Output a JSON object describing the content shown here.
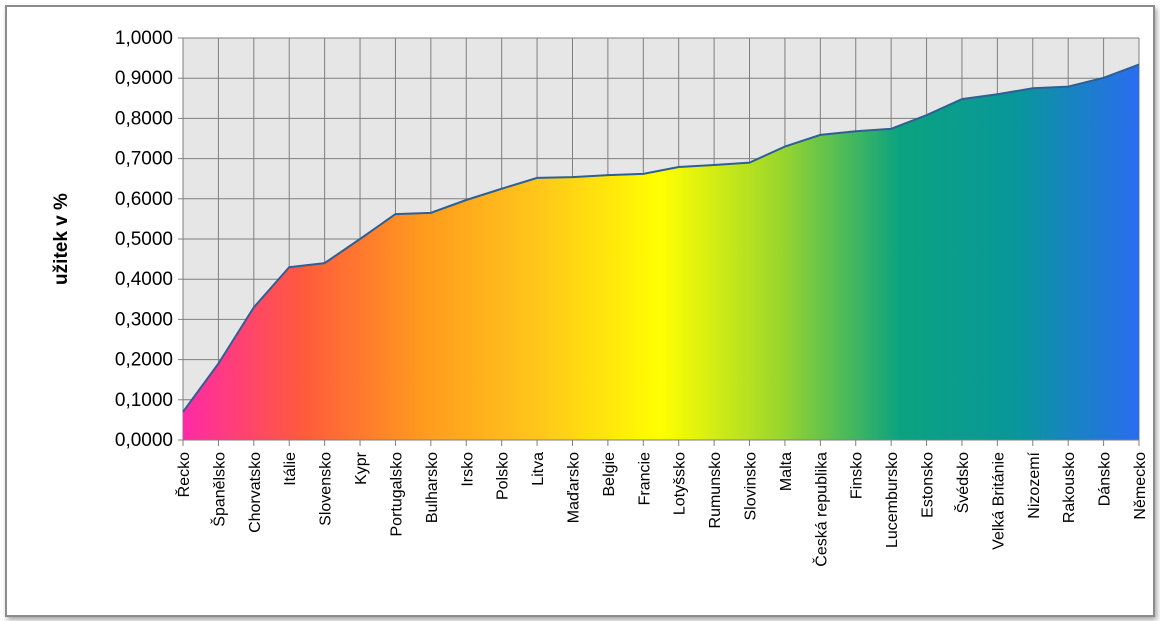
{
  "chart_data": {
    "type": "area",
    "title": "",
    "xlabel": "",
    "ylabel": "užitek v %",
    "ylim": [
      0,
      1
    ],
    "y_ticks": [
      "0,0000",
      "0,1000",
      "0,2000",
      "0,3000",
      "0,4000",
      "0,5000",
      "0,6000",
      "0,7000",
      "0,8000",
      "0,9000",
      "1,0000"
    ],
    "grid": true,
    "legend": "none",
    "categories": [
      "Řecko",
      "Španělsko",
      "Chorvatsko",
      "Itálie",
      "Slovensko",
      "Kypr",
      "Portugalsko",
      "Bulharsko",
      "Irsko",
      "Polsko",
      "Litva",
      "Maďarsko",
      "Belgie",
      "Francie",
      "Lotyšsko",
      "Rumunsko",
      "Slovinsko",
      "Malta",
      "Česká republika",
      "Finsko",
      "Lucembursko",
      "Estonsko",
      "Švédsko",
      "Velká Británie",
      "Nizozemí",
      "Rakousko",
      "Dánsko",
      "Německo"
    ],
    "series": [
      {
        "values": [
          0.07,
          0.19,
          0.33,
          0.43,
          0.44,
          0.5,
          0.562,
          0.565,
          0.597,
          0.625,
          0.652,
          0.654,
          0.659,
          0.662,
          0.679,
          0.684,
          0.69,
          0.73,
          0.759,
          0.768,
          0.774,
          0.808,
          0.848,
          0.86,
          0.875,
          0.879,
          0.901,
          0.934
        ]
      }
    ],
    "colors": {
      "line": "#2f5f95",
      "plot_background": "#e6e6e6",
      "grid": "#7f7f7f",
      "gradient": [
        "#ff2aa6",
        "#ff5a3c",
        "#ff9a1e",
        "#ffc81a",
        "#ffff00",
        "#9ad62c",
        "#0aa37f",
        "#09969c",
        "#2b6cf0"
      ]
    }
  }
}
